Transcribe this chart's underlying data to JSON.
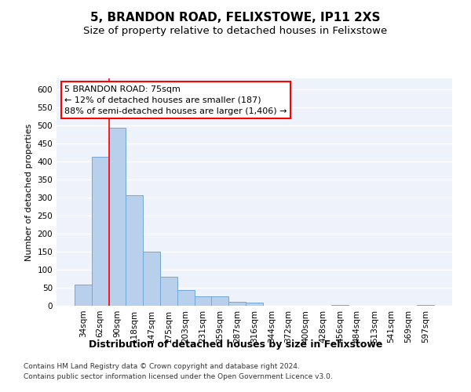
{
  "title": "5, BRANDON ROAD, FELIXSTOWE, IP11 2XS",
  "subtitle": "Size of property relative to detached houses in Felixstowe",
  "xlabel": "Distribution of detached houses by size in Felixstowe",
  "ylabel": "Number of detached properties",
  "categories": [
    "34sqm",
    "62sqm",
    "90sqm",
    "118sqm",
    "147sqm",
    "175sqm",
    "203sqm",
    "231sqm",
    "259sqm",
    "287sqm",
    "316sqm",
    "344sqm",
    "372sqm",
    "400sqm",
    "428sqm",
    "456sqm",
    "484sqm",
    "513sqm",
    "541sqm",
    "569sqm",
    "597sqm"
  ],
  "values": [
    58,
    412,
    494,
    306,
    149,
    81,
    44,
    25,
    25,
    10,
    8,
    0,
    0,
    0,
    0,
    3,
    0,
    0,
    0,
    0,
    3
  ],
  "bar_color": "#b8d0eb",
  "bar_edge_color": "#6fa8d6",
  "bar_linewidth": 0.7,
  "red_line_x": 1.5,
  "annotation_line1": "5 BRANDON ROAD: 75sqm",
  "annotation_line2": "← 12% of detached houses are smaller (187)",
  "annotation_line3": "88% of semi-detached houses are larger (1,406) →",
  "ylim": [
    0,
    630
  ],
  "yticks": [
    0,
    50,
    100,
    150,
    200,
    250,
    300,
    350,
    400,
    450,
    500,
    550,
    600
  ],
  "background_color": "#eef2fa",
  "grid_color": "#ffffff",
  "footnote1": "Contains HM Land Registry data © Crown copyright and database right 2024.",
  "footnote2": "Contains public sector information licensed under the Open Government Licence v3.0.",
  "title_fontsize": 11,
  "subtitle_fontsize": 9.5,
  "xlabel_fontsize": 9,
  "ylabel_fontsize": 8,
  "tick_fontsize": 7.5,
  "annotation_fontsize": 8,
  "footnote_fontsize": 6.5
}
